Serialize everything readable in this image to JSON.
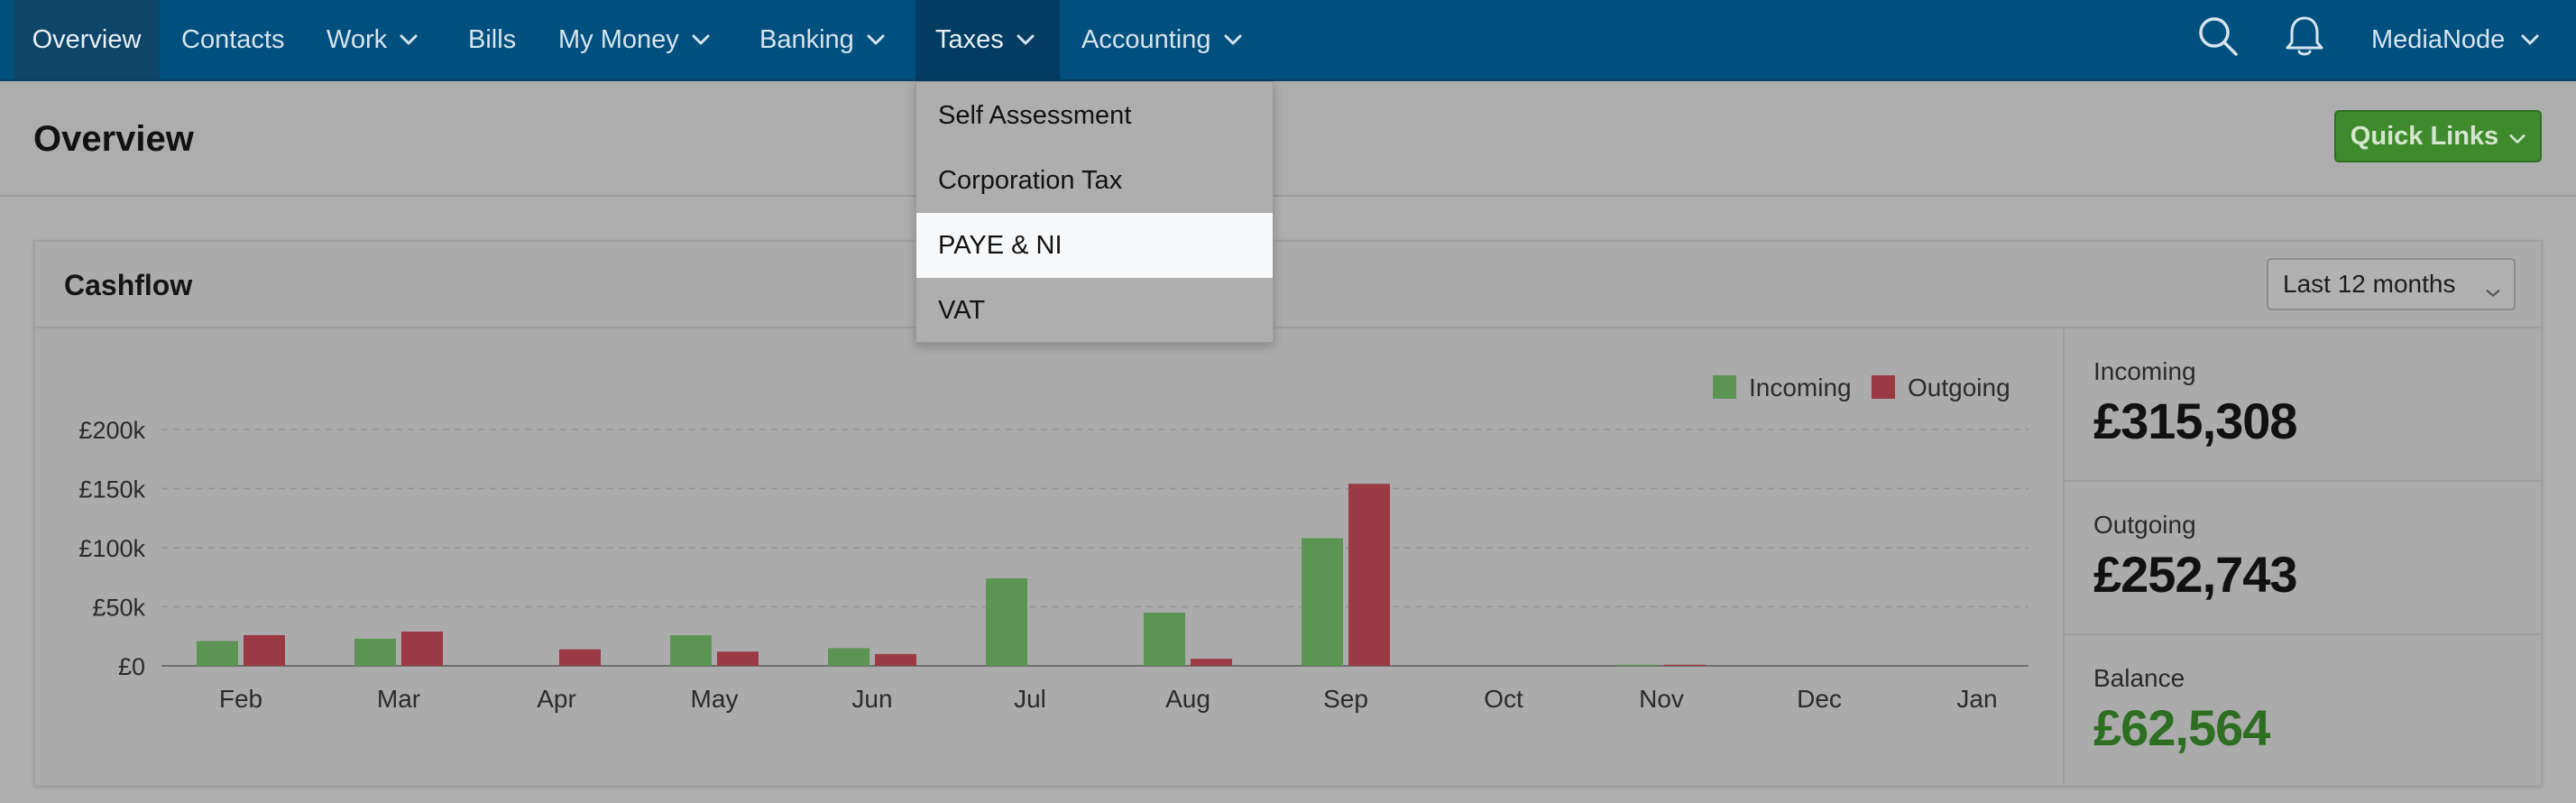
{
  "nav": {
    "overview": "Overview",
    "contacts": "Contacts",
    "work": "Work",
    "bills": "Bills",
    "my_money": "My Money",
    "banking": "Banking",
    "taxes": "Taxes",
    "accounting": "Accounting",
    "account_name": "MediaNode"
  },
  "header": {
    "title": "Overview",
    "quick_links": "Quick Links"
  },
  "taxes_menu": [
    "Self Assessment",
    "Corporation Tax",
    "PAYE & NI",
    "VAT"
  ],
  "cashflow": {
    "title": "Cashflow",
    "range": "Last 12 months",
    "stats": {
      "incoming_label": "Incoming",
      "incoming_value": "£315,308",
      "outgoing_label": "Outgoing",
      "outgoing_value": "£252,743",
      "balance_label": "Balance",
      "balance_value": "£62,564"
    }
  },
  "colors": {
    "incoming": "#5c9454",
    "outgoing": "#9b3a44",
    "balance": "#2e6e22",
    "nav_bg": "#00507f"
  },
  "chart_data": {
    "type": "bar",
    "categories": [
      "Feb",
      "Mar",
      "Apr",
      "May",
      "Jun",
      "Jul",
      "Aug",
      "Sep",
      "Oct",
      "Nov",
      "Dec",
      "Jan"
    ],
    "series": [
      {
        "name": "Incoming",
        "values": [
          21000,
          23000,
          0,
          26000,
          15000,
          74000,
          45000,
          108000,
          0,
          1000,
          0,
          0
        ]
      },
      {
        "name": "Outgoing",
        "values": [
          26000,
          29000,
          14000,
          12000,
          10000,
          0,
          6000,
          154000,
          0,
          1000,
          0,
          0
        ]
      }
    ],
    "ylim": [
      0,
      200000
    ],
    "yticks": [
      0,
      50000,
      100000,
      150000,
      200000
    ],
    "ytick_labels": [
      "£0",
      "£50k",
      "£100k",
      "£150k",
      "£200k"
    ],
    "legend": [
      "Incoming",
      "Outgoing"
    ],
    "legend_position": "top-right"
  }
}
